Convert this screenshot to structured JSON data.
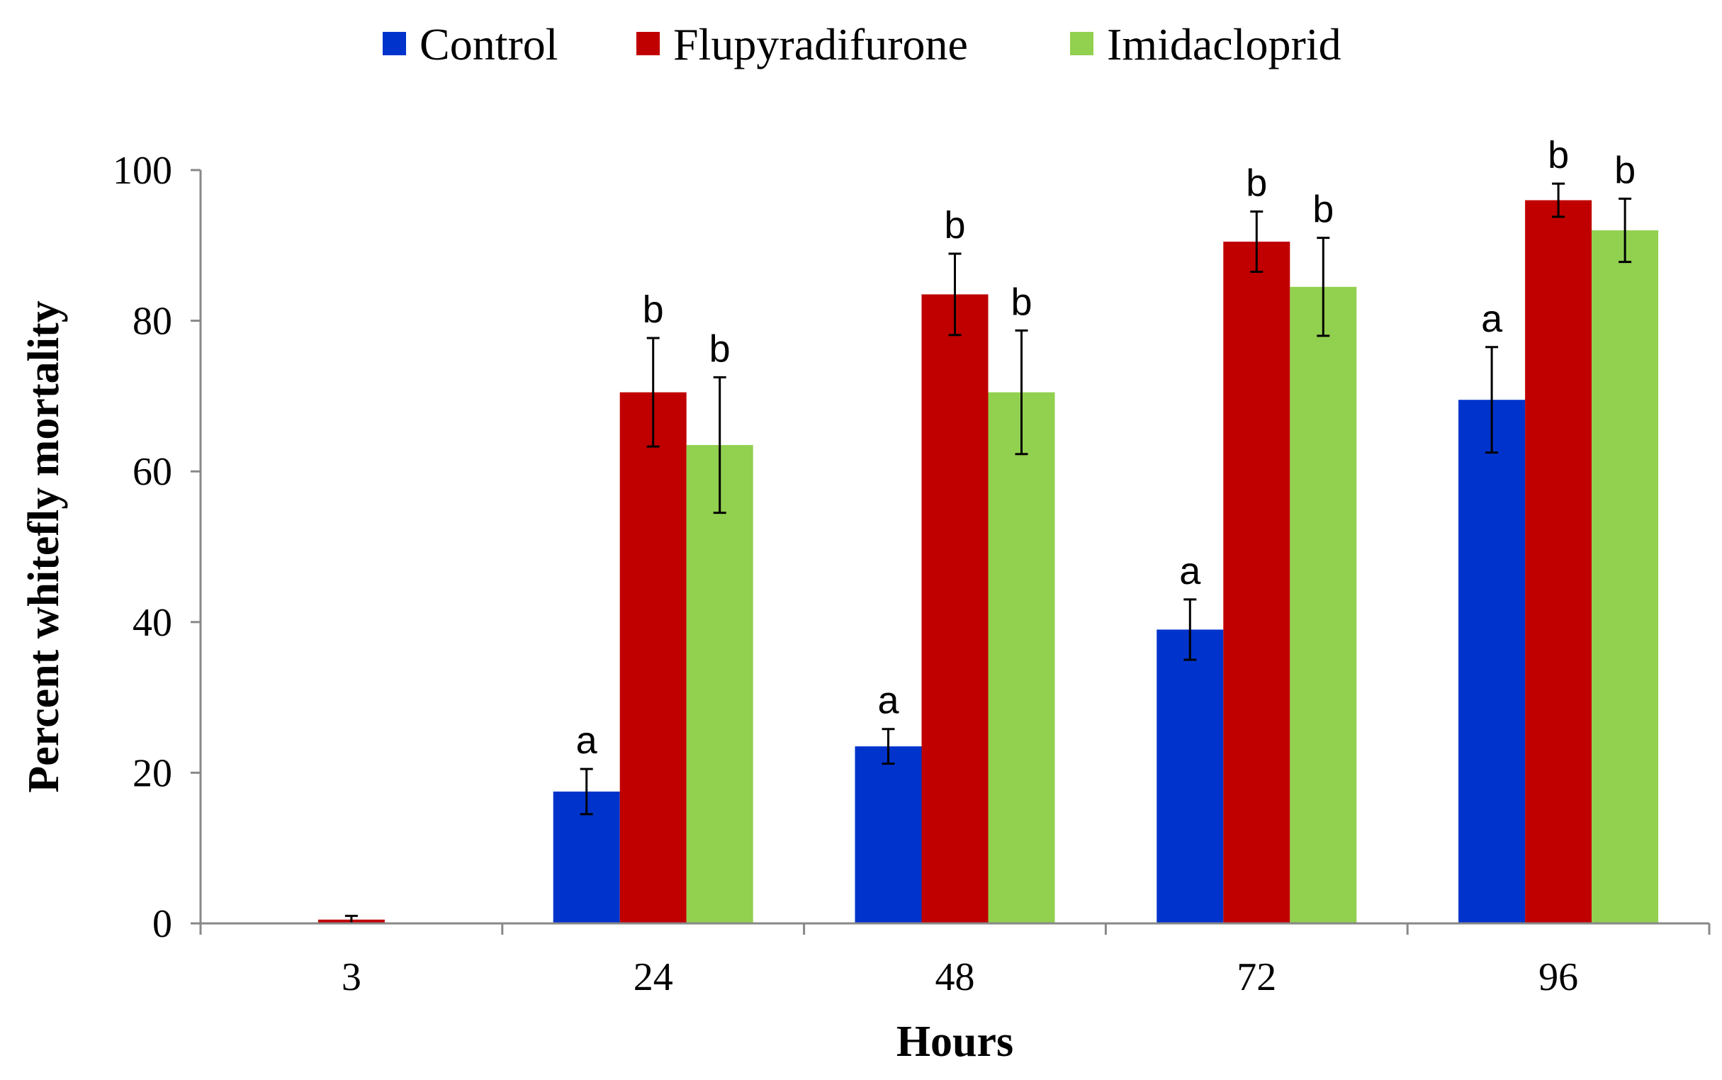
{
  "chart_data": {
    "type": "bar",
    "title": "",
    "xlabel": "Hours",
    "ylabel": "Percent whitefly mortality",
    "categories": [
      "3",
      "24",
      "48",
      "72",
      "96"
    ],
    "ylim": [
      0,
      100
    ],
    "yticks": [
      0,
      20,
      40,
      60,
      80,
      100
    ],
    "grid": false,
    "legend_position": "top-center",
    "series": [
      {
        "name": "Control",
        "color": "#0033cc",
        "values": [
          0,
          17.5,
          23.5,
          39,
          69.5
        ],
        "errors": [
          0,
          3,
          2.3,
          4,
          7
        ],
        "labels": [
          "",
          "a",
          "a",
          "a",
          "a"
        ]
      },
      {
        "name": "Flupyradifurone",
        "color": "#c00000",
        "values": [
          0.5,
          70.5,
          83.5,
          90.5,
          96
        ],
        "errors": [
          0.5,
          7.2,
          5.4,
          4,
          2.2
        ],
        "labels": [
          "",
          "b",
          "b",
          "b",
          "b"
        ]
      },
      {
        "name": "Imidacloprid",
        "color": "#92d050",
        "values": [
          0,
          63.5,
          70.5,
          84.5,
          92
        ],
        "errors": [
          0,
          9,
          8.2,
          6.5,
          4.2
        ],
        "labels": [
          "",
          "b",
          "b",
          "b",
          "b"
        ]
      }
    ]
  }
}
